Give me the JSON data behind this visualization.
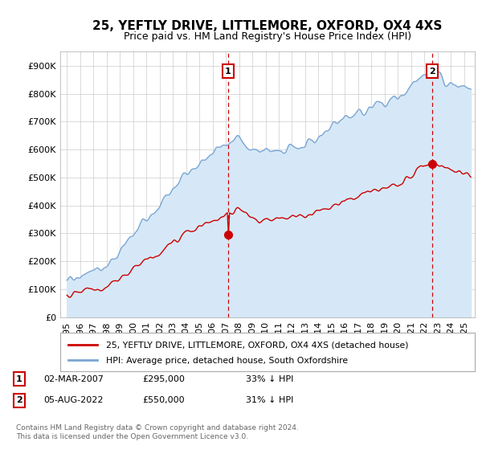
{
  "title": "25, YEFTLY DRIVE, LITTLEMORE, OXFORD, OX4 4XS",
  "subtitle": "Price paid vs. HM Land Registry's House Price Index (HPI)",
  "ylim": [
    0,
    950000
  ],
  "yticks": [
    0,
    100000,
    200000,
    300000,
    400000,
    500000,
    600000,
    700000,
    800000,
    900000
  ],
  "ytick_labels": [
    "£0",
    "£100K",
    "£200K",
    "£300K",
    "£400K",
    "£500K",
    "£600K",
    "£700K",
    "£800K",
    "£900K"
  ],
  "hpi_color": "#7aa6d4",
  "hpi_fill_color": "#d6e8f7",
  "price_color": "#cc0000",
  "vline_color": "#cc0000",
  "marker1_date": 2007.17,
  "marker1_price": 295000,
  "marker1_label": "1",
  "marker2_date": 2022.58,
  "marker2_price": 550000,
  "marker2_label": "2",
  "legend_price_label": "25, YEFTLY DRIVE, LITTLEMORE, OXFORD, OX4 4XS (detached house)",
  "legend_hpi_label": "HPI: Average price, detached house, South Oxfordshire",
  "background_color": "#ffffff",
  "grid_color": "#cccccc",
  "title_fontsize": 11,
  "subtitle_fontsize": 9,
  "tick_fontsize": 8,
  "xlim_left": 1994.5,
  "xlim_right": 2025.8,
  "footer": "Contains HM Land Registry data © Crown copyright and database right 2024.\nThis data is licensed under the Open Government Licence v3.0."
}
